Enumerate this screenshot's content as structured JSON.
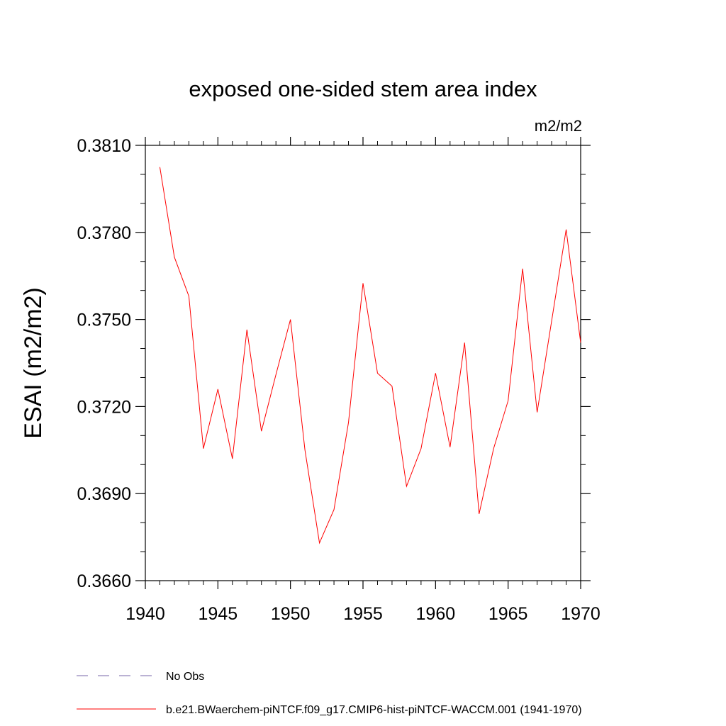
{
  "chart_data": {
    "type": "line",
    "title": "exposed one-sided stem area index",
    "units_label": "m2/m2",
    "xlabel": "",
    "ylabel": "ESAI  (m2/m2)",
    "xlim": [
      1940,
      1970
    ],
    "ylim": [
      0.366,
      0.381
    ],
    "x_major_ticks": [
      "1940",
      "1945",
      "1950",
      "1955",
      "1960",
      "1965",
      "1970"
    ],
    "y_major_ticks": [
      "0.3660",
      "0.3690",
      "0.3720",
      "0.3750",
      "0.3780",
      "0.3810"
    ],
    "grid": false,
    "legend_position": "bottom",
    "series": [
      {
        "name": "b.e21.BWaerchem-piNTCF.f09_g17.CMIP6-hist-piNTCF-WACCM.001 (1941-1970)",
        "color": "#ff0000",
        "style": "solid",
        "x": [
          1941,
          1942,
          1943,
          1944,
          1945,
          1946,
          1947,
          1948,
          1949,
          1950,
          1951,
          1952,
          1953,
          1954,
          1955,
          1956,
          1957,
          1958,
          1959,
          1960,
          1961,
          1962,
          1963,
          1964,
          1965,
          1966,
          1967,
          1968,
          1969,
          1970
        ],
        "values": [
          0.38025,
          0.37715,
          0.3758,
          0.37055,
          0.3726,
          0.3702,
          0.37465,
          0.37115,
          0.3731,
          0.375,
          0.3705,
          0.3673,
          0.36845,
          0.37145,
          0.37625,
          0.37315,
          0.3727,
          0.36925,
          0.37055,
          0.37315,
          0.3706,
          0.3742,
          0.3683,
          0.37055,
          0.3722,
          0.37675,
          0.3718,
          0.37495,
          0.3781,
          0.3742
        ]
      },
      {
        "name": "No Obs",
        "color": "#7766aa",
        "style": "dashed",
        "x": [],
        "values": []
      }
    ]
  }
}
